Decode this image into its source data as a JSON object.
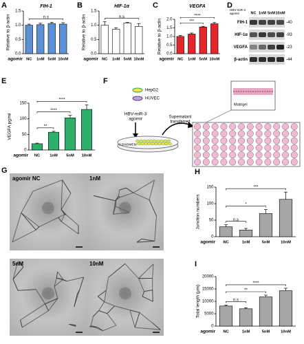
{
  "chart_data": [
    {
      "type": "bar",
      "panel": "A",
      "title": "FIH-1",
      "ylabel": "Relative to β-actin",
      "xlabel": "agomir",
      "categories": [
        "NC",
        "1nM",
        "5nM",
        "10nM"
      ],
      "values": [
        1.0,
        1.02,
        1.06,
        1.04
      ],
      "errors": [
        0.04,
        0.05,
        0.04,
        0.05
      ],
      "color": "#5b8fd6",
      "ylim": [
        0,
        1.5
      ],
      "yticks": [
        {
          "value": 0,
          "label": "0.0"
        },
        0.5,
        {
          "value": 1,
          "label": "1.0"
        },
        1.5
      ],
      "annotations": [
        {
          "text": "n.s",
          "span": [
            "NC",
            "10nM"
          ]
        }
      ]
    },
    {
      "type": "bar",
      "panel": "B",
      "title": "HIF-1α",
      "ylabel": "Relative to β-actin",
      "xlabel": "agomir",
      "categories": [
        "NC",
        "1nM",
        "5nM",
        "10nM"
      ],
      "values": [
        1.0,
        0.86,
        1.08,
        0.96
      ],
      "errors": [
        0.12,
        0.05,
        0.02,
        0.1
      ],
      "color": "#ffffff",
      "ylim": [
        0,
        1.5
      ],
      "yticks": [
        {
          "value": 0,
          "label": "0.0"
        },
        0.5,
        {
          "value": 1,
          "label": "1.0"
        },
        1.5
      ],
      "annotations": [
        {
          "text": "n.s",
          "span": [
            "NC",
            "10nM"
          ]
        }
      ]
    },
    {
      "type": "bar",
      "panel": "C",
      "title": "VEGFA",
      "ylabel": "Relative to β-actin",
      "xlabel": "agomir",
      "categories": [
        "NC",
        "1nM",
        "5nM",
        "10nM"
      ],
      "values": [
        1.0,
        1.14,
        1.55,
        1.74
      ],
      "errors": [
        0.06,
        0.06,
        0.04,
        0.07
      ],
      "color": "#e3262b",
      "ylim": [
        0,
        2
      ],
      "yticks": [
        {
          "value": 0,
          "label": "0.0"
        },
        0.5,
        {
          "value": 1,
          "label": "1.0"
        },
        1.5,
        {
          "value": 2,
          "label": "2.0"
        }
      ],
      "annotations": [
        {
          "text": "***",
          "span": [
            "NC",
            "5nM"
          ]
        },
        {
          "text": "****",
          "span": [
            "NC",
            "10nM"
          ]
        }
      ]
    },
    {
      "type": "bar",
      "panel": "E",
      "ylabel": "VEGFA pg/ml",
      "xlabel": "agomir",
      "categories": [
        "NC",
        "1nM",
        "5nM",
        "10nM"
      ],
      "values": [
        20,
        57,
        103,
        130
      ],
      "errors": [
        2,
        3,
        8,
        15
      ],
      "color": "#2eb06b",
      "ylim": [
        0,
        150
      ],
      "yticks": [
        0,
        50,
        100,
        150
      ],
      "annotations": [
        {
          "text": "**",
          "span": [
            "NC",
            "1nM"
          ]
        },
        {
          "text": "****",
          "span": [
            "NC",
            "5nM"
          ]
        },
        {
          "text": "****",
          "span": [
            "NC",
            "10nM"
          ]
        }
      ]
    },
    {
      "type": "bar",
      "panel": "H",
      "ylabel": "Junction numbers",
      "xlabel": "agomir",
      "categories": [
        "NC",
        "1nM",
        "5nM",
        "10nM"
      ],
      "values": [
        30,
        20,
        70,
        113
      ],
      "errors": [
        6,
        5,
        12,
        22
      ],
      "color": "#a6a6a6",
      "ylim": [
        0,
        150
      ],
      "yticks": [
        0,
        50,
        100,
        150
      ],
      "annotations": [
        {
          "text": "n.s",
          "span": [
            "NC",
            "1nM"
          ]
        },
        {
          "text": "*",
          "span": [
            "NC",
            "5nM"
          ]
        },
        {
          "text": "***",
          "span": [
            "NC",
            "10nM"
          ]
        }
      ]
    },
    {
      "type": "bar",
      "panel": "I",
      "ylabel": "Total length (μm)",
      "xlabel": "agomir",
      "categories": [
        "NC",
        "1nM",
        "5nM",
        "10nM"
      ],
      "values": [
        8100,
        7000,
        11800,
        14300
      ],
      "errors": [
        400,
        400,
        700,
        1000
      ],
      "color": "#a6a6a6",
      "ylim": [
        0,
        20000
      ],
      "yticks": [
        0,
        5000,
        10000,
        15000,
        20000
      ],
      "annotations": [
        {
          "text": "n.s",
          "span": [
            "NC",
            "1nM"
          ]
        },
        {
          "text": "**",
          "span": [
            "NC",
            "5nM"
          ]
        },
        {
          "text": "****",
          "span": [
            "NC",
            "10nM"
          ]
        }
      ]
    }
  ],
  "blot": {
    "panel": "D",
    "header": [
      "HBV-miR-3",
      "agomir"
    ],
    "lanes": [
      "NC",
      "1nM",
      "5nM",
      "10nM"
    ],
    "rows": [
      {
        "name": "FIH-1",
        "size": "-40"
      },
      {
        "name": "HIF-1α",
        "size": "-93"
      },
      {
        "name": "VEGFA",
        "size": "-23"
      },
      {
        "name": "β-actin",
        "size": "-44"
      }
    ]
  },
  "diagram": {
    "panel": "F",
    "legend": [
      "HepG2",
      "HUVEC"
    ],
    "treatment": [
      "HBV-miR-3",
      "agomir"
    ],
    "transfer": [
      "Supernatant",
      "transferred"
    ],
    "medium": "0.5%DMEM",
    "matrix": "Matrigel"
  },
  "images": {
    "panel": "G",
    "labels": [
      "agomir NC",
      "1nM",
      "5nM",
      "10nM"
    ]
  }
}
